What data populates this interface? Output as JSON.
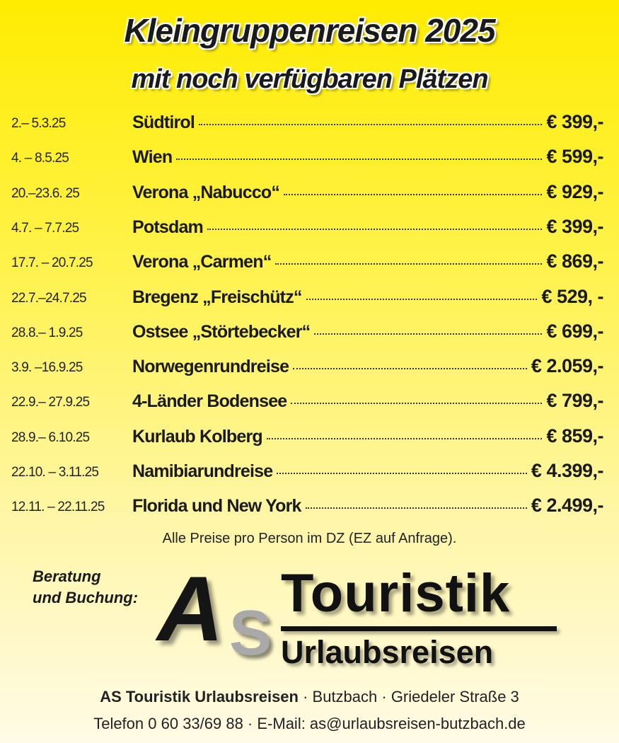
{
  "header": {
    "title": "Kleingruppenreisen 2025",
    "subtitle": "mit noch verfügbaren Plätzen"
  },
  "trips": [
    {
      "date": "2.– 5.3.25",
      "name": "Südtirol",
      "price": "€ 399,-"
    },
    {
      "date": "4. – 8.5.25",
      "name": "Wien",
      "price": "€ 599,-"
    },
    {
      "date": "20.–23.6. 25",
      "name": "Verona „Nabucco“",
      "price": "€ 929,-"
    },
    {
      "date": "4.7. – 7.7.25",
      "name": "Potsdam",
      "price": "€ 399,-"
    },
    {
      "date": "17.7. – 20.7.25",
      "name": "Verona „Carmen“",
      "price": "€ 869,-"
    },
    {
      "date": "22.7.–24.7.25",
      "name": "Bregenz „Freischütz“",
      "price": "€ 529, -"
    },
    {
      "date": "28.8.– 1.9.25",
      "name": "Ostsee „Störtebecker“",
      "price": "€ 699,-"
    },
    {
      "date": "3.9. –16.9.25",
      "name": "Norwegenrundreise",
      "price": "€ 2.059,-"
    },
    {
      "date": "22.9.– 27.9.25",
      "name": "4-Länder Bodensee",
      "price": "€ 799,-"
    },
    {
      "date": "28.9.– 6.10.25",
      "name": "Kurlaub Kolberg",
      "price": "€ 859,-"
    },
    {
      "date": "22.10. – 3.11.25",
      "name": "Namibiarundreise",
      "price": "€ 4.399,-"
    },
    {
      "date": "12.11. – 22.11.25",
      "name": "Florida und New York",
      "price": "€ 2.499,-"
    }
  ],
  "note": "Alle Preise pro Person im DZ  (EZ auf Anfrage).",
  "contact": {
    "line1": "Beratung",
    "line2": "und Buchung:"
  },
  "logo": {
    "letter_a": "A",
    "letter_s": "S",
    "word1": "Touristik",
    "word2": "Urlaubsreisen"
  },
  "address": {
    "company": "AS Touristik Urlaubsreisen",
    "rest": " · Butzbach · Griedeler Straße 3",
    "phone_line": "Telefon 0 60 33/69 88 ·  E-Mail: as@urlaubsreisen-butzbach.de"
  },
  "colors": {
    "background_top": "#ffec00",
    "background_bottom": "#fffbe6",
    "text": "#1a1a1a"
  }
}
